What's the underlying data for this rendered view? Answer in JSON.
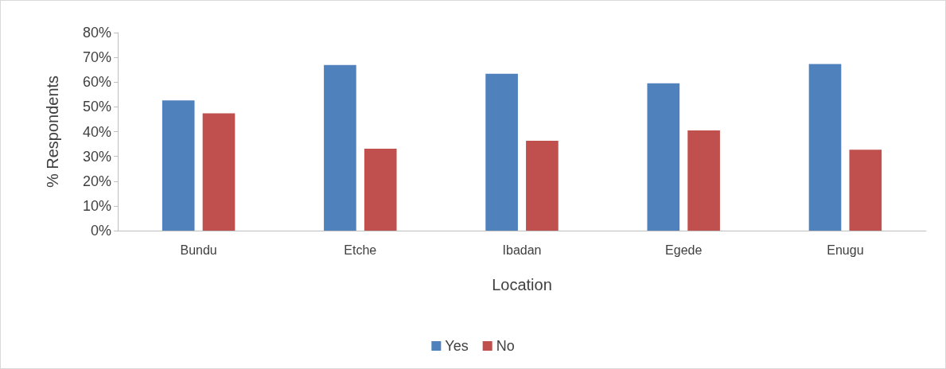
{
  "chart_data": {
    "type": "bar",
    "xlabel": "Location",
    "ylabel": "% Respondents",
    "categories": [
      "Bundu",
      "Etche",
      "Ibadan",
      "Egede",
      "Enugu"
    ],
    "series": [
      {
        "name": "Yes",
        "color": "#4f81bd",
        "values": [
          52.6,
          66.9,
          63.4,
          59.5,
          67.3
        ]
      },
      {
        "name": "No",
        "color": "#c0504d",
        "values": [
          47.4,
          33.1,
          36.3,
          40.5,
          32.7
        ]
      }
    ],
    "ylim": [
      0,
      80
    ],
    "yticks": [
      {
        "value": 0,
        "label": "0%"
      },
      {
        "value": 10,
        "label": "10%"
      },
      {
        "value": 20,
        "label": "20%"
      },
      {
        "value": 30,
        "label": "30%"
      },
      {
        "value": 40,
        "label": "40%"
      },
      {
        "value": 50,
        "label": "50%"
      },
      {
        "value": 60,
        "label": "60%"
      },
      {
        "value": 70,
        "label": "70%"
      },
      {
        "value": 80,
        "label": "80%"
      }
    ],
    "grid": false,
    "legend": "bottom"
  }
}
